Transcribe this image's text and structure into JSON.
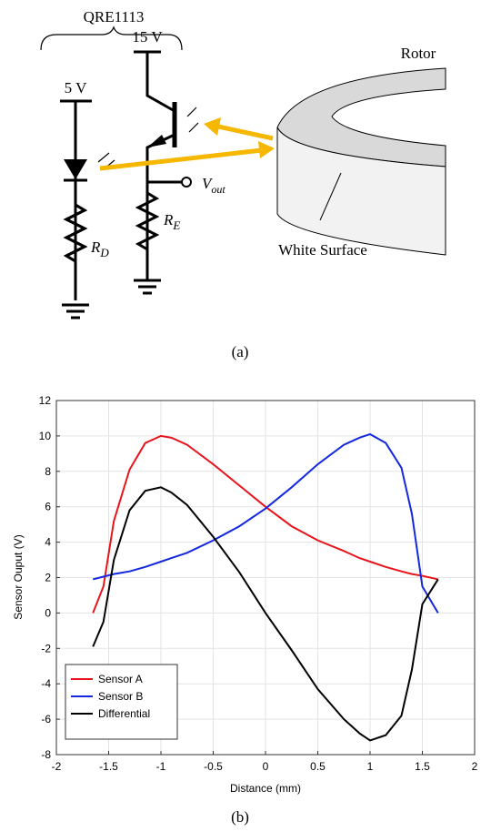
{
  "diagram": {
    "package": "QRE1113",
    "supply_high": "15 V",
    "supply_low": "5 V",
    "rotor": "Rotor",
    "output": {
      "main": "V",
      "sub": "out"
    },
    "emitter_resistor": {
      "main": "R",
      "sub": "E"
    },
    "diode_resistor": {
      "main": "R",
      "sub": "D"
    },
    "surface": "White Surface",
    "caption": "(a)"
  },
  "chart_data": {
    "type": "line",
    "caption": "(b)",
    "x_label": "Distance (mm)",
    "y_label": "Sensor Ouput (V)",
    "x": [
      -1.65,
      -1.55,
      -1.45,
      -1.3,
      -1.15,
      -1.0,
      -0.9,
      -0.75,
      -0.5,
      -0.25,
      0,
      0.25,
      0.5,
      0.75,
      0.9,
      1.0,
      1.15,
      1.3,
      1.4,
      1.5,
      1.65
    ],
    "series": [
      {
        "name": "Sensor A",
        "color": "#e8141c",
        "values": [
          0,
          1.5,
          5.2,
          8.1,
          9.6,
          10.0,
          9.9,
          9.5,
          8.4,
          7.2,
          6.0,
          4.9,
          4.1,
          3.5,
          3.1,
          2.9,
          2.6,
          2.35,
          2.2,
          2.1,
          1.9
        ]
      },
      {
        "name": "Sensor B",
        "color": "#1428e0",
        "values": [
          1.9,
          2.05,
          2.2,
          2.35,
          2.6,
          2.9,
          3.1,
          3.4,
          4.1,
          4.9,
          5.9,
          7.1,
          8.4,
          9.5,
          9.9,
          10.1,
          9.6,
          8.2,
          5.6,
          1.5,
          0
        ]
      },
      {
        "name": "Differential",
        "color": "#000000",
        "values": [
          -1.9,
          -0.5,
          3.0,
          5.8,
          6.9,
          7.1,
          6.8,
          6.1,
          4.3,
          2.3,
          0,
          -2.1,
          -4.3,
          -6.0,
          -6.8,
          -7.2,
          -6.9,
          -5.8,
          -3.2,
          0.5,
          1.9
        ]
      }
    ],
    "xlim": [
      -2,
      2
    ],
    "xticks": [
      -2,
      -1.5,
      -1,
      -0.5,
      0,
      0.5,
      1,
      1.5,
      2
    ],
    "ylim": [
      -8,
      12
    ],
    "yticks": [
      -8,
      -6,
      -4,
      -2,
      0,
      2,
      4,
      6,
      8,
      10,
      12
    ],
    "grid": true,
    "legend": "lower-left"
  }
}
